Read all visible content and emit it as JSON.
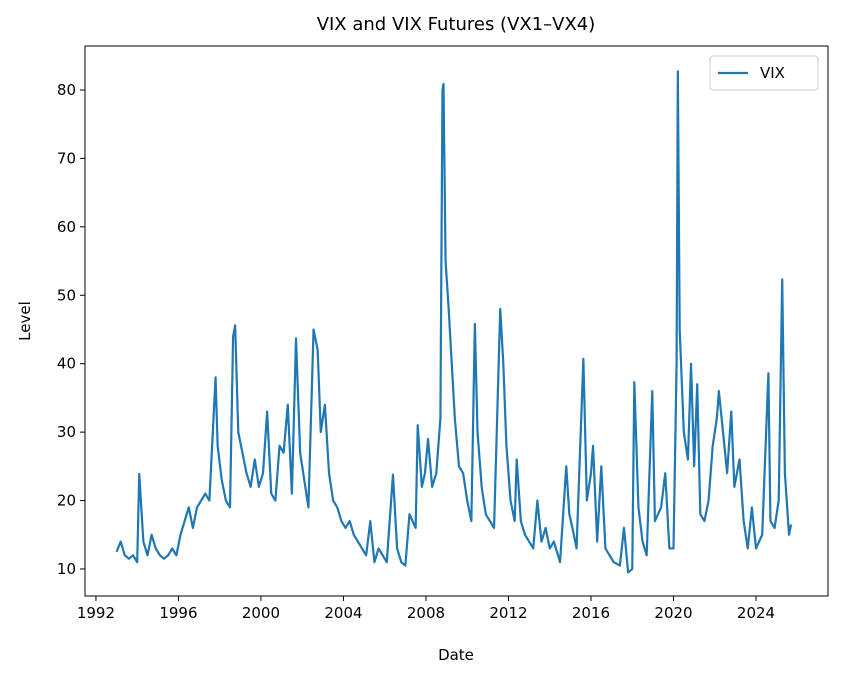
{
  "chart_data": {
    "type": "line",
    "title": "VIX and VIX Futures (VX1–VX4)",
    "x_label": "Date",
    "y_label": "Level",
    "x": [
      1993.0,
      1993.2,
      1993.4,
      1993.6,
      1993.8,
      1994.0,
      1994.1,
      1994.3,
      1994.5,
      1994.7,
      1994.9,
      1995.1,
      1995.3,
      1995.5,
      1995.7,
      1995.9,
      1996.1,
      1996.3,
      1996.5,
      1996.7,
      1996.9,
      1997.1,
      1997.3,
      1997.5,
      1997.8,
      1997.9,
      1998.1,
      1998.3,
      1998.5,
      1998.65,
      1998.75,
      1998.9,
      1999.1,
      1999.3,
      1999.5,
      1999.7,
      1999.9,
      2000.1,
      2000.3,
      2000.5,
      2000.7,
      2000.9,
      2001.1,
      2001.3,
      2001.5,
      2001.7,
      2001.9,
      2002.1,
      2002.3,
      2002.55,
      2002.75,
      2002.9,
      2003.1,
      2003.3,
      2003.5,
      2003.7,
      2003.9,
      2004.1,
      2004.3,
      2004.5,
      2004.7,
      2004.9,
      2005.1,
      2005.3,
      2005.5,
      2005.7,
      2005.9,
      2006.1,
      2006.4,
      2006.6,
      2006.8,
      2007.0,
      2007.2,
      2007.5,
      2007.6,
      2007.8,
      2007.95,
      2008.1,
      2008.3,
      2008.5,
      2008.7,
      2008.8,
      2008.85,
      2008.95,
      2009.1,
      2009.25,
      2009.4,
      2009.6,
      2009.8,
      2010.0,
      2010.2,
      2010.37,
      2010.5,
      2010.7,
      2010.9,
      2011.1,
      2011.3,
      2011.6,
      2011.75,
      2011.9,
      2012.1,
      2012.3,
      2012.4,
      2012.6,
      2012.8,
      2013.0,
      2013.2,
      2013.4,
      2013.6,
      2013.8,
      2014.0,
      2014.2,
      2014.5,
      2014.8,
      2014.95,
      2015.1,
      2015.3,
      2015.63,
      2015.8,
      2016.0,
      2016.1,
      2016.3,
      2016.5,
      2016.7,
      2016.9,
      2017.1,
      2017.4,
      2017.6,
      2017.8,
      2018.0,
      2018.1,
      2018.3,
      2018.5,
      2018.7,
      2018.97,
      2019.1,
      2019.4,
      2019.6,
      2019.8,
      2020.0,
      2020.15,
      2020.21,
      2020.3,
      2020.5,
      2020.7,
      2020.85,
      2021.0,
      2021.15,
      2021.3,
      2021.5,
      2021.7,
      2021.9,
      2022.1,
      2022.2,
      2022.4,
      2022.6,
      2022.8,
      2022.95,
      2023.2,
      2023.4,
      2023.6,
      2023.8,
      2024.0,
      2024.3,
      2024.6,
      2024.7,
      2024.9,
      2025.1,
      2025.27,
      2025.4,
      2025.6,
      2025.7
    ],
    "series": [
      {
        "name": "VIX",
        "color": "#1f77b4",
        "values": [
          12.5,
          14,
          12,
          11.5,
          12,
          11,
          23.9,
          14,
          12,
          15,
          13,
          12,
          11.5,
          12,
          13,
          12,
          15,
          17,
          19,
          16,
          19,
          20,
          21,
          20,
          38,
          28,
          23,
          20,
          19,
          44,
          45.6,
          30,
          27,
          24,
          22,
          26,
          22,
          24,
          33,
          21,
          20,
          28,
          27,
          34,
          21,
          43.7,
          27,
          23,
          19,
          45,
          42,
          30,
          34,
          24,
          20,
          19,
          17,
          16,
          17,
          15,
          14,
          13,
          12,
          17,
          11,
          13,
          12,
          11,
          23.8,
          13,
          11,
          10.5,
          18,
          16,
          31,
          22,
          24,
          29,
          22,
          24,
          32,
          80,
          80.9,
          55,
          48,
          40,
          32,
          25,
          24,
          20,
          17,
          45.8,
          30,
          22,
          18,
          17,
          16,
          48,
          40,
          28,
          20,
          17,
          26,
          17,
          15,
          14,
          13,
          20,
          14,
          16,
          13,
          14,
          11,
          25,
          18,
          16,
          13,
          40.7,
          20,
          24,
          28,
          14,
          25,
          13,
          12,
          11,
          10.5,
          16,
          9.5,
          10,
          37.3,
          19,
          14,
          12,
          36,
          17,
          19,
          24,
          13,
          13,
          40,
          82.7,
          45,
          30,
          26,
          40,
          25,
          37,
          18,
          17,
          20,
          28,
          32,
          36,
          30,
          24,
          33,
          22,
          26,
          17,
          13,
          19,
          13,
          15,
          38.6,
          17,
          16,
          20,
          52.3,
          24,
          15,
          16.5
        ]
      }
    ],
    "xlim": [
      1991.47,
      2027.49
    ],
    "ylim": [
      6.05,
      86.43
    ],
    "xticks": [
      1992,
      1996,
      2000,
      2004,
      2008,
      2012,
      2016,
      2020,
      2024
    ],
    "yticks": [
      10,
      20,
      30,
      40,
      50,
      60,
      70,
      80
    ],
    "legend": "upper right"
  }
}
